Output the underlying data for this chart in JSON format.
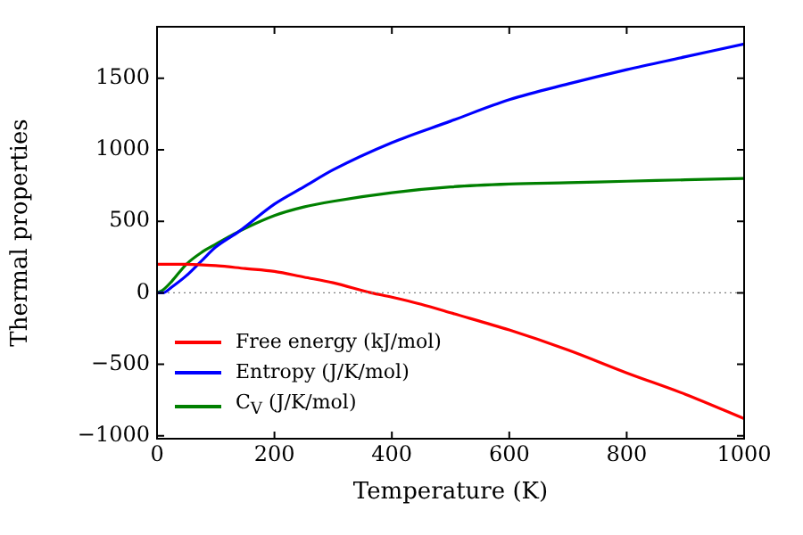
{
  "chart_data": {
    "type": "line",
    "xlabel": "Temperature (K)",
    "ylabel": "Thermal properties",
    "xlim": [
      0,
      1000
    ],
    "xticks": [
      0,
      200,
      400,
      600,
      800,
      1000
    ],
    "ylim": [
      -1020,
      1860
    ],
    "yticks": [
      -1000,
      -500,
      0,
      500,
      1000,
      1500
    ],
    "grid": false,
    "legend": "bottom left",
    "marker": "none",
    "line_style": "solid",
    "ref_lines": [
      {
        "axis": "y",
        "value": 0,
        "color": "#808080",
        "line_style": "dotted"
      }
    ],
    "series": [
      {
        "name": "Free energy (kJ/mol)",
        "color": "#ff0000",
        "x": [
          0,
          50,
          100,
          150,
          200,
          250,
          300,
          365,
          400,
          450,
          500,
          600,
          700,
          800,
          900,
          1000
        ],
        "values": [
          200,
          200,
          190,
          170,
          150,
          110,
          70,
          0,
          -30,
          -80,
          -140,
          -260,
          -400,
          -560,
          -710,
          -880
        ]
      },
      {
        "name": "Entropy (J/K/mol)",
        "color": "#0000ff",
        "x": [
          0,
          10,
          25,
          50,
          75,
          100,
          140,
          200,
          250,
          300,
          400,
          500,
          600,
          700,
          800,
          900,
          1000
        ],
        "values": [
          0,
          0,
          40,
          120,
          220,
          320,
          430,
          620,
          740,
          860,
          1050,
          1200,
          1350,
          1460,
          1560,
          1650,
          1740
        ]
      },
      {
        "name": "C$_{V}$ (J/K/mol)",
        "color": "#008000",
        "x": [
          0,
          10,
          25,
          50,
          75,
          100,
          140,
          200,
          250,
          300,
          400,
          500,
          600,
          700,
          800,
          900,
          1000
        ],
        "values": [
          0,
          20,
          80,
          200,
          280,
          340,
          430,
          540,
          600,
          640,
          700,
          740,
          760,
          770,
          780,
          790,
          800
        ]
      }
    ]
  }
}
